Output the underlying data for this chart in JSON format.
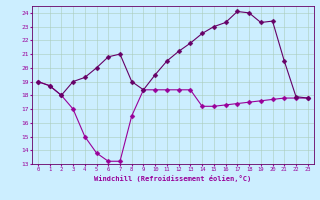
{
  "xlabel": "Windchill (Refroidissement éolien,°C)",
  "bg_color": "#cceeff",
  "line1_color": "#990099",
  "line2_color": "#660066",
  "x_hours": [
    0,
    1,
    2,
    3,
    4,
    5,
    6,
    7,
    8,
    9,
    10,
    11,
    12,
    13,
    14,
    15,
    16,
    17,
    18,
    19,
    20,
    21,
    22,
    23
  ],
  "windchill": [
    19.0,
    18.7,
    18.0,
    17.0,
    15.0,
    13.8,
    13.2,
    13.2,
    16.5,
    18.4,
    18.4,
    18.4,
    18.4,
    18.4,
    17.2,
    17.2,
    17.3,
    17.4,
    17.5,
    17.6,
    17.7,
    17.8,
    17.8,
    17.8
  ],
  "temperature": [
    19.0,
    18.7,
    18.0,
    19.0,
    19.3,
    20.0,
    20.8,
    21.0,
    19.0,
    18.4,
    19.5,
    20.5,
    21.2,
    21.8,
    22.5,
    23.0,
    23.3,
    24.1,
    24.0,
    23.3,
    23.4,
    20.5,
    17.9,
    17.8
  ],
  "ylim": [
    13,
    24.5
  ],
  "yticks": [
    13,
    14,
    15,
    16,
    17,
    18,
    19,
    20,
    21,
    22,
    23,
    24
  ],
  "grid_color": "#aaccbb",
  "markersize": 2.5,
  "linewidth": 0.8
}
